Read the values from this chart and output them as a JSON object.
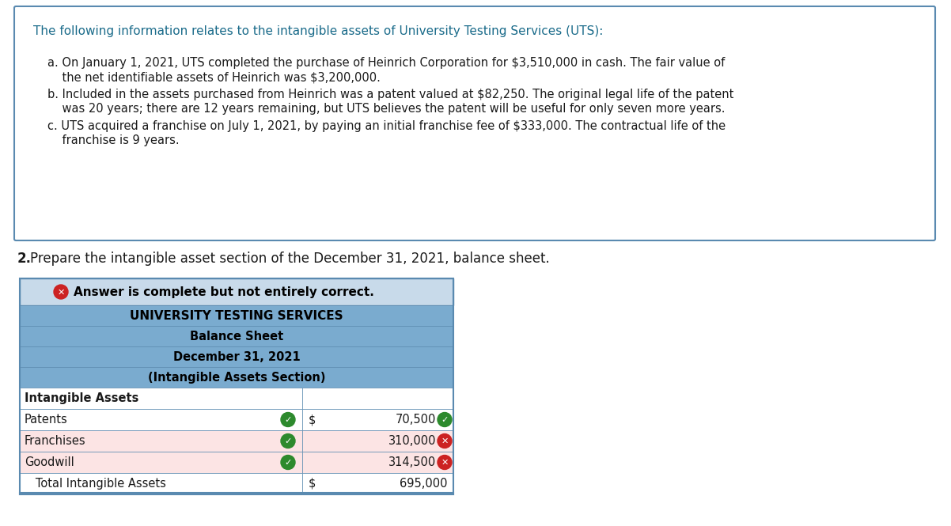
{
  "page_bg": "#ffffff",
  "intro_text": "The following information relates to the intangible assets of University Testing Services (UTS):",
  "item_a1": "a. On January 1, 2021, UTS completed the purchase of Heinrich Corporation for $3,510,000 in cash. The fair value of",
  "item_a2": "    the net identifiable assets of Heinrich was $3,200,000.",
  "item_b1": "b. Included in the assets purchased from Heinrich was a patent valued at $82,250. The original legal life of the patent",
  "item_b2": "    was 20 years; there are 12 years remaining, but UTS believes the patent will be useful for only seven more years.",
  "item_c1": "c. UTS acquired a franchise on July 1, 2021, by paying an initial franchise fee of $333,000. The contractual life of the",
  "item_c2": "    franchise is 9 years.",
  "question_text": "Prepare the intangible asset section of the December 31, 2021, balance sheet.",
  "banner_bg": "#c8daea",
  "banner_fg": "#000000",
  "table_header_bg": "#7aabcf",
  "table_header_fg": "#000000",
  "table_border": "#5a8ab0",
  "table_title1": "UNIVERSITY TESTING SERVICES",
  "table_title2": "Balance Sheet",
  "table_title3": "December 31, 2021",
  "table_title4": "(Intangible Assets Section)",
  "rows": [
    {
      "label": "Intangible Assets",
      "dollar": "",
      "value": "",
      "col1_icon": null,
      "col2_icon": null,
      "bold_label": true,
      "row_bg": "#ffffff"
    },
    {
      "label": "Patents",
      "dollar": "$",
      "value": "70,500",
      "col1_icon": "green_check",
      "col2_icon": "green_check",
      "bold_label": false,
      "row_bg": "#ffffff"
    },
    {
      "label": "Franchises",
      "dollar": "",
      "value": "310,000",
      "col1_icon": "green_check",
      "col2_icon": "red_x",
      "bold_label": false,
      "row_bg": "#fce4e4"
    },
    {
      "label": "Goodwill",
      "dollar": "",
      "value": "314,500",
      "col1_icon": "green_check",
      "col2_icon": "red_x",
      "bold_label": false,
      "row_bg": "#fce4e4"
    },
    {
      "label": "   Total Intangible Assets",
      "dollar": "$",
      "value": "695,000",
      "col1_icon": null,
      "col2_icon": null,
      "bold_label": false,
      "row_bg": "#ffffff"
    }
  ],
  "text_color_dark": "#1a1a1a",
  "text_color_teal": "#1a6b8a",
  "outer_box_color": "#5a8ab0",
  "green_icon_color": "#2d8a2d",
  "red_icon_color": "#cc2222"
}
